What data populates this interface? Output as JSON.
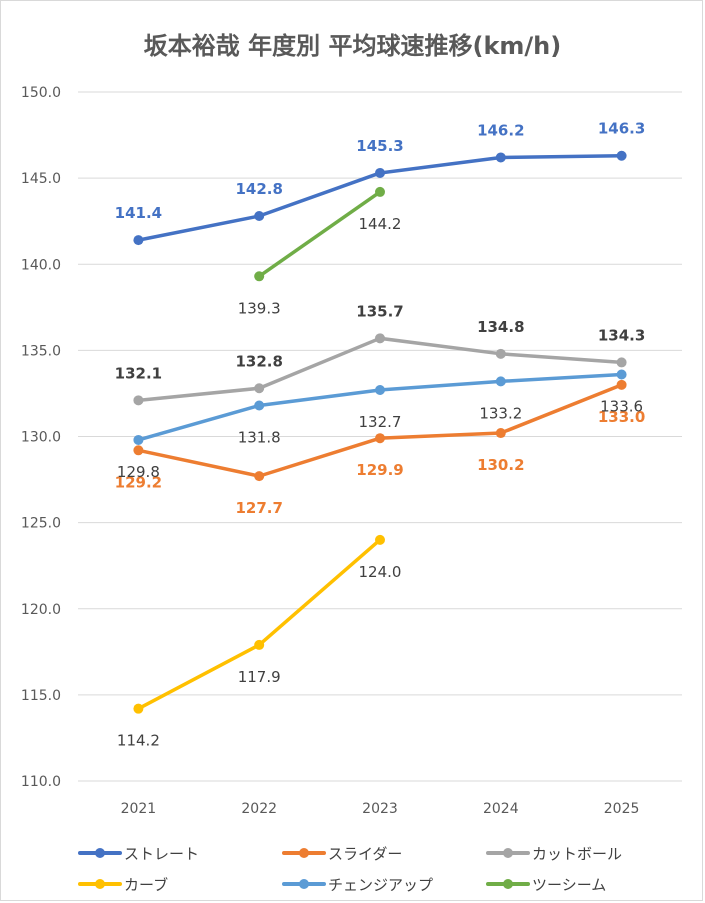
{
  "title": "坂本裕哉 年度別 平均球速推移(km/h)",
  "chart_data": {
    "type": "line",
    "title": "坂本裕哉 年度別 平均球速推移(km/h)",
    "xlabel": "",
    "ylabel": "",
    "categories": [
      "2021",
      "2022",
      "2023",
      "2024",
      "2025"
    ],
    "ylim": [
      110.0,
      150.0
    ],
    "yticks": [
      "110.0",
      "115.0",
      "120.0",
      "125.0",
      "130.0",
      "135.0",
      "140.0",
      "145.0",
      "150.0"
    ],
    "ytick_values": [
      110,
      115,
      120,
      125,
      130,
      135,
      140,
      145,
      150
    ],
    "grid": "horizontal",
    "legend_position": "bottom",
    "series": [
      {
        "name": "ストレート",
        "color": "#4472c4",
        "label_color": "#4472c4",
        "label_bold": true,
        "label_pos": "above",
        "values": [
          141.4,
          142.8,
          145.3,
          146.2,
          146.3
        ],
        "labels": [
          "141.4",
          "142.8",
          "145.3",
          "146.2",
          "146.3"
        ]
      },
      {
        "name": "スライダー",
        "color": "#ed7d31",
        "label_color": "#ed7d31",
        "label_bold": true,
        "label_pos": "below",
        "values": [
          129.2,
          127.7,
          129.9,
          130.2,
          133.0
        ],
        "labels": [
          "129.2",
          "127.7",
          "129.9",
          "130.2",
          "133.0"
        ]
      },
      {
        "name": "カットボール",
        "color": "#a5a5a5",
        "label_color": "#404040",
        "label_bold": true,
        "label_pos": "above",
        "values": [
          132.1,
          132.8,
          135.7,
          134.8,
          134.3
        ],
        "labels": [
          "132.1",
          "132.8",
          "135.7",
          "134.8",
          "134.3"
        ]
      },
      {
        "name": "カーブ",
        "color": "#ffc000",
        "label_color": "#404040",
        "label_bold": false,
        "label_pos": "below",
        "values": [
          114.2,
          117.9,
          124.0,
          null,
          null
        ],
        "labels": [
          "114.2",
          "117.9",
          "124.0",
          null,
          null
        ]
      },
      {
        "name": "チェンジアップ",
        "color": "#5b9bd5",
        "label_color": "#404040",
        "label_bold": false,
        "label_pos": "below",
        "values": [
          129.8,
          131.8,
          132.7,
          133.2,
          133.6
        ],
        "labels": [
          "129.8",
          "131.8",
          "132.7",
          "133.2",
          "133.6"
        ]
      },
      {
        "name": "ツーシーム",
        "color": "#70ad47",
        "label_color": "#404040",
        "label_bold": false,
        "label_pos": "below",
        "values": [
          null,
          139.3,
          144.2,
          null,
          null
        ],
        "labels": [
          null,
          "139.3",
          "144.2",
          null,
          null
        ]
      }
    ]
  }
}
